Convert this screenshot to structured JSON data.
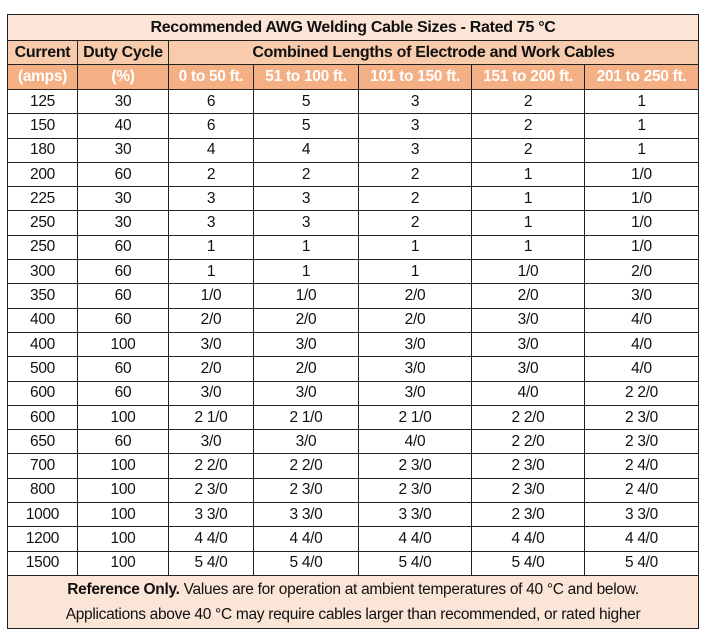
{
  "title": "Recommended AWG Welding Cable Sizes - Rated 75 °C",
  "headers": {
    "current": "Current",
    "duty_cycle": "Duty Cycle",
    "lengths_group": "Combined Lengths of Electrode and Work Cables",
    "current_unit": "(amps)",
    "duty_unit": "(%)",
    "lengths": [
      "0 to 50 ft.",
      "51 to 100 ft.",
      "101 to 150 ft.",
      "151 to 200 ft.",
      "201 to 250 ft."
    ]
  },
  "rows": [
    [
      "125",
      "30",
      "6",
      "5",
      "3",
      "2",
      "1"
    ],
    [
      "150",
      "40",
      "6",
      "5",
      "3",
      "2",
      "1"
    ],
    [
      "180",
      "30",
      "4",
      "4",
      "3",
      "2",
      "1"
    ],
    [
      "200",
      "60",
      "2",
      "2",
      "2",
      "1",
      "1/0"
    ],
    [
      "225",
      "30",
      "3",
      "3",
      "2",
      "1",
      "1/0"
    ],
    [
      "250",
      "30",
      "3",
      "3",
      "2",
      "1",
      "1/0"
    ],
    [
      "250",
      "60",
      "1",
      "1",
      "1",
      "1",
      "1/0"
    ],
    [
      "300",
      "60",
      "1",
      "1",
      "1",
      "1/0",
      "2/0"
    ],
    [
      "350",
      "60",
      "1/0",
      "1/0",
      "2/0",
      "2/0",
      "3/0"
    ],
    [
      "400",
      "60",
      "2/0",
      "2/0",
      "2/0",
      "3/0",
      "4/0"
    ],
    [
      "400",
      "100",
      "3/0",
      "3/0",
      "3/0",
      "3/0",
      "4/0"
    ],
    [
      "500",
      "60",
      "2/0",
      "2/0",
      "3/0",
      "3/0",
      "4/0"
    ],
    [
      "600",
      "60",
      "3/0",
      "3/0",
      "3/0",
      "4/0",
      "2 2/0"
    ],
    [
      "600",
      "100",
      "2 1/0",
      "2 1/0",
      "2 1/0",
      "2 2/0",
      "2 3/0"
    ],
    [
      "650",
      "60",
      "3/0",
      "3/0",
      "4/0",
      "2 2/0",
      "2 3/0"
    ],
    [
      "700",
      "100",
      "2 2/0",
      "2 2/0",
      "2 3/0",
      "2 3/0",
      "2 4/0"
    ],
    [
      "800",
      "100",
      "2 3/0",
      "2 3/0",
      "2 3/0",
      "2 3/0",
      "2 4/0"
    ],
    [
      "1000",
      "100",
      "3 3/0",
      "3 3/0",
      "3 3/0",
      "2 3/0",
      "3 3/0"
    ],
    [
      "1200",
      "100",
      "4 4/0",
      "4 4/0",
      "4 4/0",
      "4 4/0",
      "4 4/0"
    ],
    [
      "1500",
      "100",
      "5 4/0",
      "5 4/0",
      "5 4/0",
      "5 4/0",
      "5 4/0"
    ]
  ],
  "footer": {
    "bold": "Reference Only.",
    "line1": " Values are for operation at ambient temperatures of 40 °C and below.",
    "line2": "Applications above 40 °C may require cables larger than recommended, or rated higher"
  },
  "colors": {
    "title_bg": "#fce4d6",
    "header_bg": "#f8cbad",
    "subheader_bg": "#f4b084",
    "subheader_text": "#ffffff",
    "footer_bg": "#fbe5d6"
  }
}
